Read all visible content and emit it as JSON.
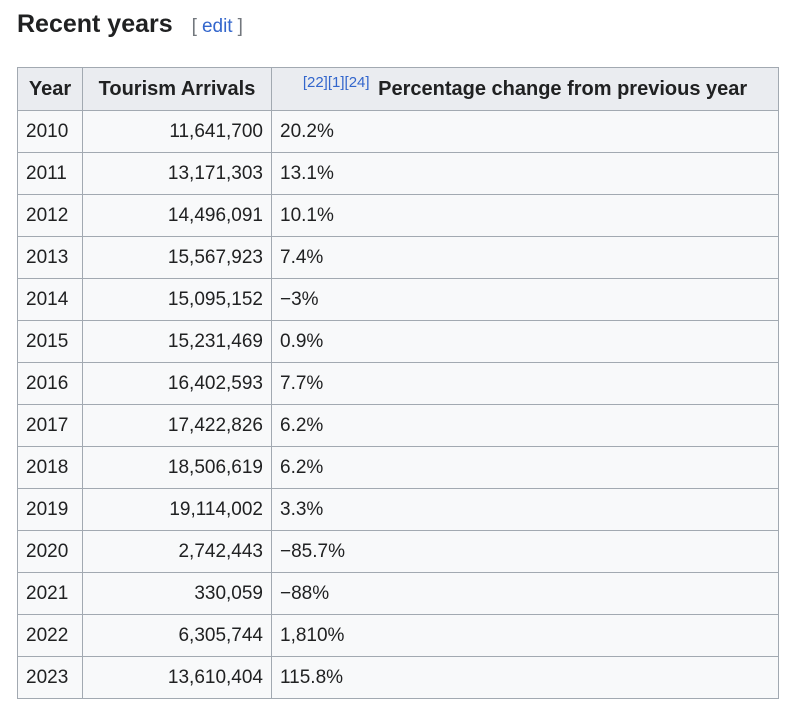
{
  "section": {
    "title": "Recent years",
    "edit_open": "[",
    "edit_label": "edit",
    "edit_close": "]"
  },
  "table": {
    "headers": {
      "year": "Year",
      "arrivals": "Tourism Arrivals",
      "refs": [
        "[22]",
        "[1]",
        "[24]"
      ],
      "pct": "Percentage change from previous year"
    },
    "rows": [
      {
        "year": "2010",
        "arrivals": "11,641,700",
        "pct": "20.2%"
      },
      {
        "year": "2011",
        "arrivals": "13,171,303",
        "pct": "13.1%"
      },
      {
        "year": "2012",
        "arrivals": "14,496,091",
        "pct": "10.1%"
      },
      {
        "year": "2013",
        "arrivals": "15,567,923",
        "pct": "7.4%"
      },
      {
        "year": "2014",
        "arrivals": "15,095,152",
        "pct": "−3%"
      },
      {
        "year": "2015",
        "arrivals": "15,231,469",
        "pct": "0.9%"
      },
      {
        "year": "2016",
        "arrivals": "16,402,593",
        "pct": "7.7%"
      },
      {
        "year": "2017",
        "arrivals": "17,422,826",
        "pct": "6.2%"
      },
      {
        "year": "2018",
        "arrivals": "18,506,619",
        "pct": "6.2%"
      },
      {
        "year": "2019",
        "arrivals": "19,114,002",
        "pct": "3.3%"
      },
      {
        "year": "2020",
        "arrivals": "2,742,443",
        "pct": "−85.7%"
      },
      {
        "year": "2021",
        "arrivals": "330,059",
        "pct": "−88%"
      },
      {
        "year": "2022",
        "arrivals": "6,305,744",
        "pct": "1,810%"
      },
      {
        "year": "2023",
        "arrivals": "13,610,404",
        "pct": "115.8%"
      }
    ]
  },
  "colors": {
    "link": "#3366cc",
    "header_bg": "#eaecf0",
    "cell_bg": "#f8f9fa",
    "border": "#a2a9b1"
  }
}
